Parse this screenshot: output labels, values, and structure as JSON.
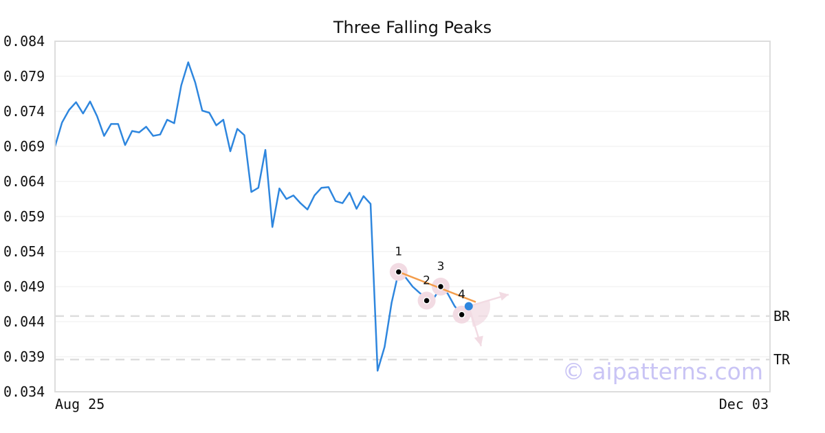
{
  "chart_data": {
    "type": "line",
    "title": "Three Falling Peaks",
    "xlabel": "",
    "ylabel": "",
    "x_tick_labels": [
      "Aug 25",
      "Dec 03"
    ],
    "y_ticks": [
      "0.084",
      "0.079",
      "0.074",
      "0.069",
      "0.064",
      "0.059",
      "0.054",
      "0.049",
      "0.044",
      "0.039",
      "0.034"
    ],
    "ylim": [
      0.034,
      0.084
    ],
    "grid": true,
    "series": [
      {
        "color": "#2e86de",
        "values": [
          0.069,
          0.0724,
          0.0742,
          0.0753,
          0.0737,
          0.0754,
          0.0733,
          0.0705,
          0.0722,
          0.0722,
          0.0692,
          0.0712,
          0.071,
          0.0718,
          0.0705,
          0.0707,
          0.0728,
          0.0723,
          0.0777,
          0.081,
          0.0781,
          0.0741,
          0.0738,
          0.072,
          0.0728,
          0.0683,
          0.0715,
          0.0706,
          0.0625,
          0.0631,
          0.0685,
          0.0575,
          0.063,
          0.0615,
          0.062,
          0.0609,
          0.06,
          0.062,
          0.0631,
          0.0632,
          0.0612,
          0.0609,
          0.0624,
          0.0601,
          0.0619,
          0.0608,
          0.037,
          0.0404,
          0.0467,
          0.0511,
          0.0503,
          0.049,
          0.0481,
          0.0473,
          0.0473,
          0.0489,
          0.048,
          0.0462,
          0.045,
          0.0462
        ]
      }
    ],
    "levels": [
      {
        "label": "BR",
        "value": 0.0448,
        "color": "#dddddd"
      },
      {
        "label": "TR",
        "value": 0.0386,
        "color": "#dddddd"
      }
    ],
    "trendline": {
      "color": "#f39c4a",
      "from": {
        "index": 49,
        "value": 0.0511
      },
      "to": {
        "index": 60,
        "value": 0.0468
      }
    },
    "pattern_points": [
      {
        "label": "1",
        "index": 49,
        "value": 0.0511
      },
      {
        "label": "2",
        "index": 53,
        "value": 0.047
      },
      {
        "label": "3",
        "index": 55,
        "value": 0.049
      },
      {
        "label": "4",
        "index": 58,
        "value": 0.045
      }
    ],
    "current_point": {
      "index": 59,
      "value": 0.0462,
      "color": "#2e86de"
    },
    "highlight_color": "#f2dbe3",
    "watermark": "© aipatterns.com"
  }
}
